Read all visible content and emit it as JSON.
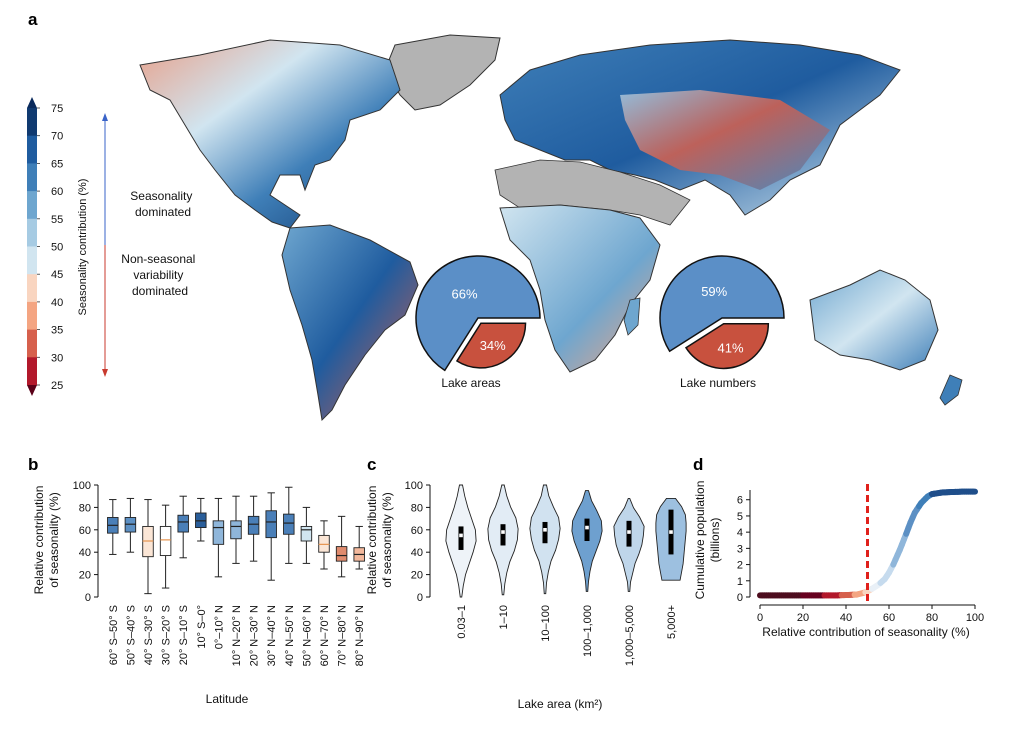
{
  "panel_letters": [
    "a",
    "b",
    "c",
    "d"
  ],
  "colors": {
    "scale": [
      "#67001f",
      "#b2182b",
      "#d6604d",
      "#f4a582",
      "#f9d5c0",
      "#f7f7f7",
      "#d1e5f0",
      "#a6cbe3",
      "#6ea6cf",
      "#3f7fb8",
      "#1f5c9f",
      "#103a70"
    ],
    "land_gray": "#b3b3b3",
    "pie_blue": "#5b8fc7",
    "pie_red": "#c8513e",
    "arrow_blue": "#3a63c8",
    "arrow_red": "#c83a2e",
    "dashed_red": "#e0201b"
  },
  "panel_a": {
    "colorbar": {
      "ticks": [
        "75",
        "70",
        "65",
        "60",
        "55",
        "50",
        "45",
        "40",
        "35",
        "30",
        "25"
      ],
      "label": "Seasonality contribution (%)"
    },
    "arrows": {
      "seasonal_label": [
        "Seasonality",
        "dominated"
      ],
      "nonseasonal_label": [
        "Non-seasonal",
        "variability",
        "dominated"
      ]
    },
    "pies": [
      {
        "caption": "Lake areas",
        "slices": [
          {
            "label": "66%",
            "value": 66
          },
          {
            "label": "34%",
            "value": 34
          }
        ]
      },
      {
        "caption": "Lake numbers",
        "slices": [
          {
            "label": "59%",
            "value": 59
          },
          {
            "label": "41%",
            "value": 41
          }
        ]
      }
    ]
  },
  "chart_data": [
    {
      "panel": "b",
      "type": "box",
      "xlabel": "Latitude",
      "ylabel": [
        "Relative contribution",
        "of seasonality (%)"
      ],
      "ylim": [
        0,
        100
      ],
      "yticks": [
        "0",
        "20",
        "40",
        "60",
        "80",
        "100"
      ],
      "categories": [
        "60° S–50° S",
        "50° S–40° S",
        "40° S–30° S",
        "30° S–20° S",
        "20° S–10° S",
        "10° S–0°",
        "0°–10° N",
        "10° N–20° N",
        "20° N–30° N",
        "30° N–40° N",
        "40° N–50° N",
        "50° N–60° N",
        "60° N–70° N",
        "70° N–80° N",
        "80° N–90° N"
      ],
      "boxes": [
        {
          "min": 38,
          "q1": 57,
          "median": 64,
          "q3": 71,
          "max": 87,
          "color": "#4a7fb8"
        },
        {
          "min": 40,
          "q1": 58,
          "median": 65,
          "q3": 71,
          "max": 88,
          "color": "#5c90c4"
        },
        {
          "min": 3,
          "q1": 36,
          "median": 50,
          "q3": 63,
          "max": 87,
          "color": "#fbe6d6"
        },
        {
          "min": 8,
          "q1": 37,
          "median": 51,
          "q3": 63,
          "max": 82,
          "color": "#ffffff"
        },
        {
          "min": 35,
          "q1": 58,
          "median": 67,
          "q3": 73,
          "max": 90,
          "color": "#4a7fb8"
        },
        {
          "min": 50,
          "q1": 62,
          "median": 68,
          "q3": 75,
          "max": 88,
          "color": "#2a5e9a"
        },
        {
          "min": 18,
          "q1": 47,
          "median": 62,
          "q3": 68,
          "max": 88,
          "color": "#8fb6da"
        },
        {
          "min": 30,
          "q1": 52,
          "median": 63,
          "q3": 68,
          "max": 90,
          "color": "#8fb6da"
        },
        {
          "min": 32,
          "q1": 56,
          "median": 65,
          "q3": 72,
          "max": 90,
          "color": "#4a7fb8"
        },
        {
          "min": 15,
          "q1": 53,
          "median": 67,
          "q3": 77,
          "max": 93,
          "color": "#4a7fb8"
        },
        {
          "min": 30,
          "q1": 56,
          "median": 66,
          "q3": 74,
          "max": 98,
          "color": "#4a7fb8"
        },
        {
          "min": 30,
          "q1": 50,
          "median": 60,
          "q3": 63,
          "max": 80,
          "color": "#d1e5f0"
        },
        {
          "min": 25,
          "q1": 40,
          "median": 47,
          "q3": 55,
          "max": 68,
          "color": "#fbe6d6"
        },
        {
          "min": 18,
          "q1": 32,
          "median": 37,
          "q3": 45,
          "max": 72,
          "color": "#e08b6e"
        },
        {
          "min": 25,
          "q1": 32,
          "median": 38,
          "q3": 44,
          "max": 63,
          "color": "#f3b89c"
        }
      ]
    },
    {
      "panel": "c",
      "type": "violin",
      "xlabel": "Lake area (km²)",
      "ylabel": [
        "Relative contribution",
        "of seasonality (%)"
      ],
      "ylim": [
        0,
        100
      ],
      "yticks": [
        "0",
        "20",
        "40",
        "60",
        "80",
        "100"
      ],
      "categories": [
        "0.03–1",
        "1–10",
        "10–100",
        "100–1,000",
        "1,000–5,000",
        "5,000+"
      ],
      "violins": [
        {
          "min": 0,
          "max": 100,
          "q1": 42,
          "median": 55,
          "q3": 63,
          "color": "#eef3f8",
          "widths": [
            0.05,
            0.15,
            0.3,
            0.55,
            0.8,
            1.0,
            0.95,
            0.7,
            0.45,
            0.25,
            0.1
          ]
        },
        {
          "min": 2,
          "max": 100,
          "q1": 46,
          "median": 58,
          "q3": 65,
          "color": "#e2ecf5",
          "widths": [
            0.05,
            0.12,
            0.25,
            0.45,
            0.75,
            0.95,
            1.0,
            0.85,
            0.5,
            0.25,
            0.08
          ]
        },
        {
          "min": 3,
          "max": 100,
          "q1": 48,
          "median": 60,
          "q3": 67,
          "color": "#d1e2f0",
          "widths": [
            0.05,
            0.1,
            0.22,
            0.4,
            0.7,
            0.9,
            1.0,
            0.9,
            0.55,
            0.25,
            0.1
          ]
        },
        {
          "min": 5,
          "max": 95,
          "q1": 50,
          "median": 62,
          "q3": 70,
          "color": "#6ea0cf",
          "widths": [
            0.05,
            0.1,
            0.2,
            0.35,
            0.6,
            0.85,
            1.0,
            0.95,
            0.65,
            0.3,
            0.1
          ]
        },
        {
          "min": 5,
          "max": 88,
          "q1": 45,
          "median": 58,
          "q3": 68,
          "color": "#bfd6ea",
          "widths": [
            0.05,
            0.1,
            0.25,
            0.4,
            0.65,
            0.85,
            0.95,
            1.0,
            0.7,
            0.3,
            0.05
          ]
        },
        {
          "min": 15,
          "max": 88,
          "q1": 38,
          "median": 58,
          "q3": 78,
          "color": "#9dc0e0",
          "widths": [
            0.6,
            0.7,
            0.8,
            0.85,
            0.9,
            0.95,
            1.0,
            1.0,
            0.95,
            0.7,
            0.3
          ]
        }
      ]
    },
    {
      "panel": "d",
      "type": "line",
      "xlabel": "Relative contribution of seasonality (%)",
      "ylabel": [
        "Cumulative population",
        "(billions)"
      ],
      "xlim": [
        0,
        100
      ],
      "ylim": [
        0,
        6.6
      ],
      "xticks": [
        "0",
        "20",
        "40",
        "60",
        "80",
        "100"
      ],
      "yticks": [
        "0",
        "1",
        "2",
        "3",
        "4",
        "5",
        "6"
      ],
      "threshold": 50,
      "x": [
        0,
        5,
        10,
        15,
        20,
        25,
        30,
        35,
        40,
        45,
        48,
        50,
        52,
        55,
        58,
        60,
        62,
        65,
        68,
        70,
        72,
        75,
        78,
        80,
        85,
        90,
        95,
        100
      ],
      "y": [
        0.1,
        0.1,
        0.1,
        0.1,
        0.1,
        0.1,
        0.1,
        0.1,
        0.12,
        0.15,
        0.25,
        0.35,
        0.5,
        0.75,
        1.1,
        1.5,
        2.0,
        2.9,
        3.9,
        4.6,
        5.2,
        5.8,
        6.2,
        6.35,
        6.45,
        6.48,
        6.5,
        6.5
      ]
    }
  ]
}
